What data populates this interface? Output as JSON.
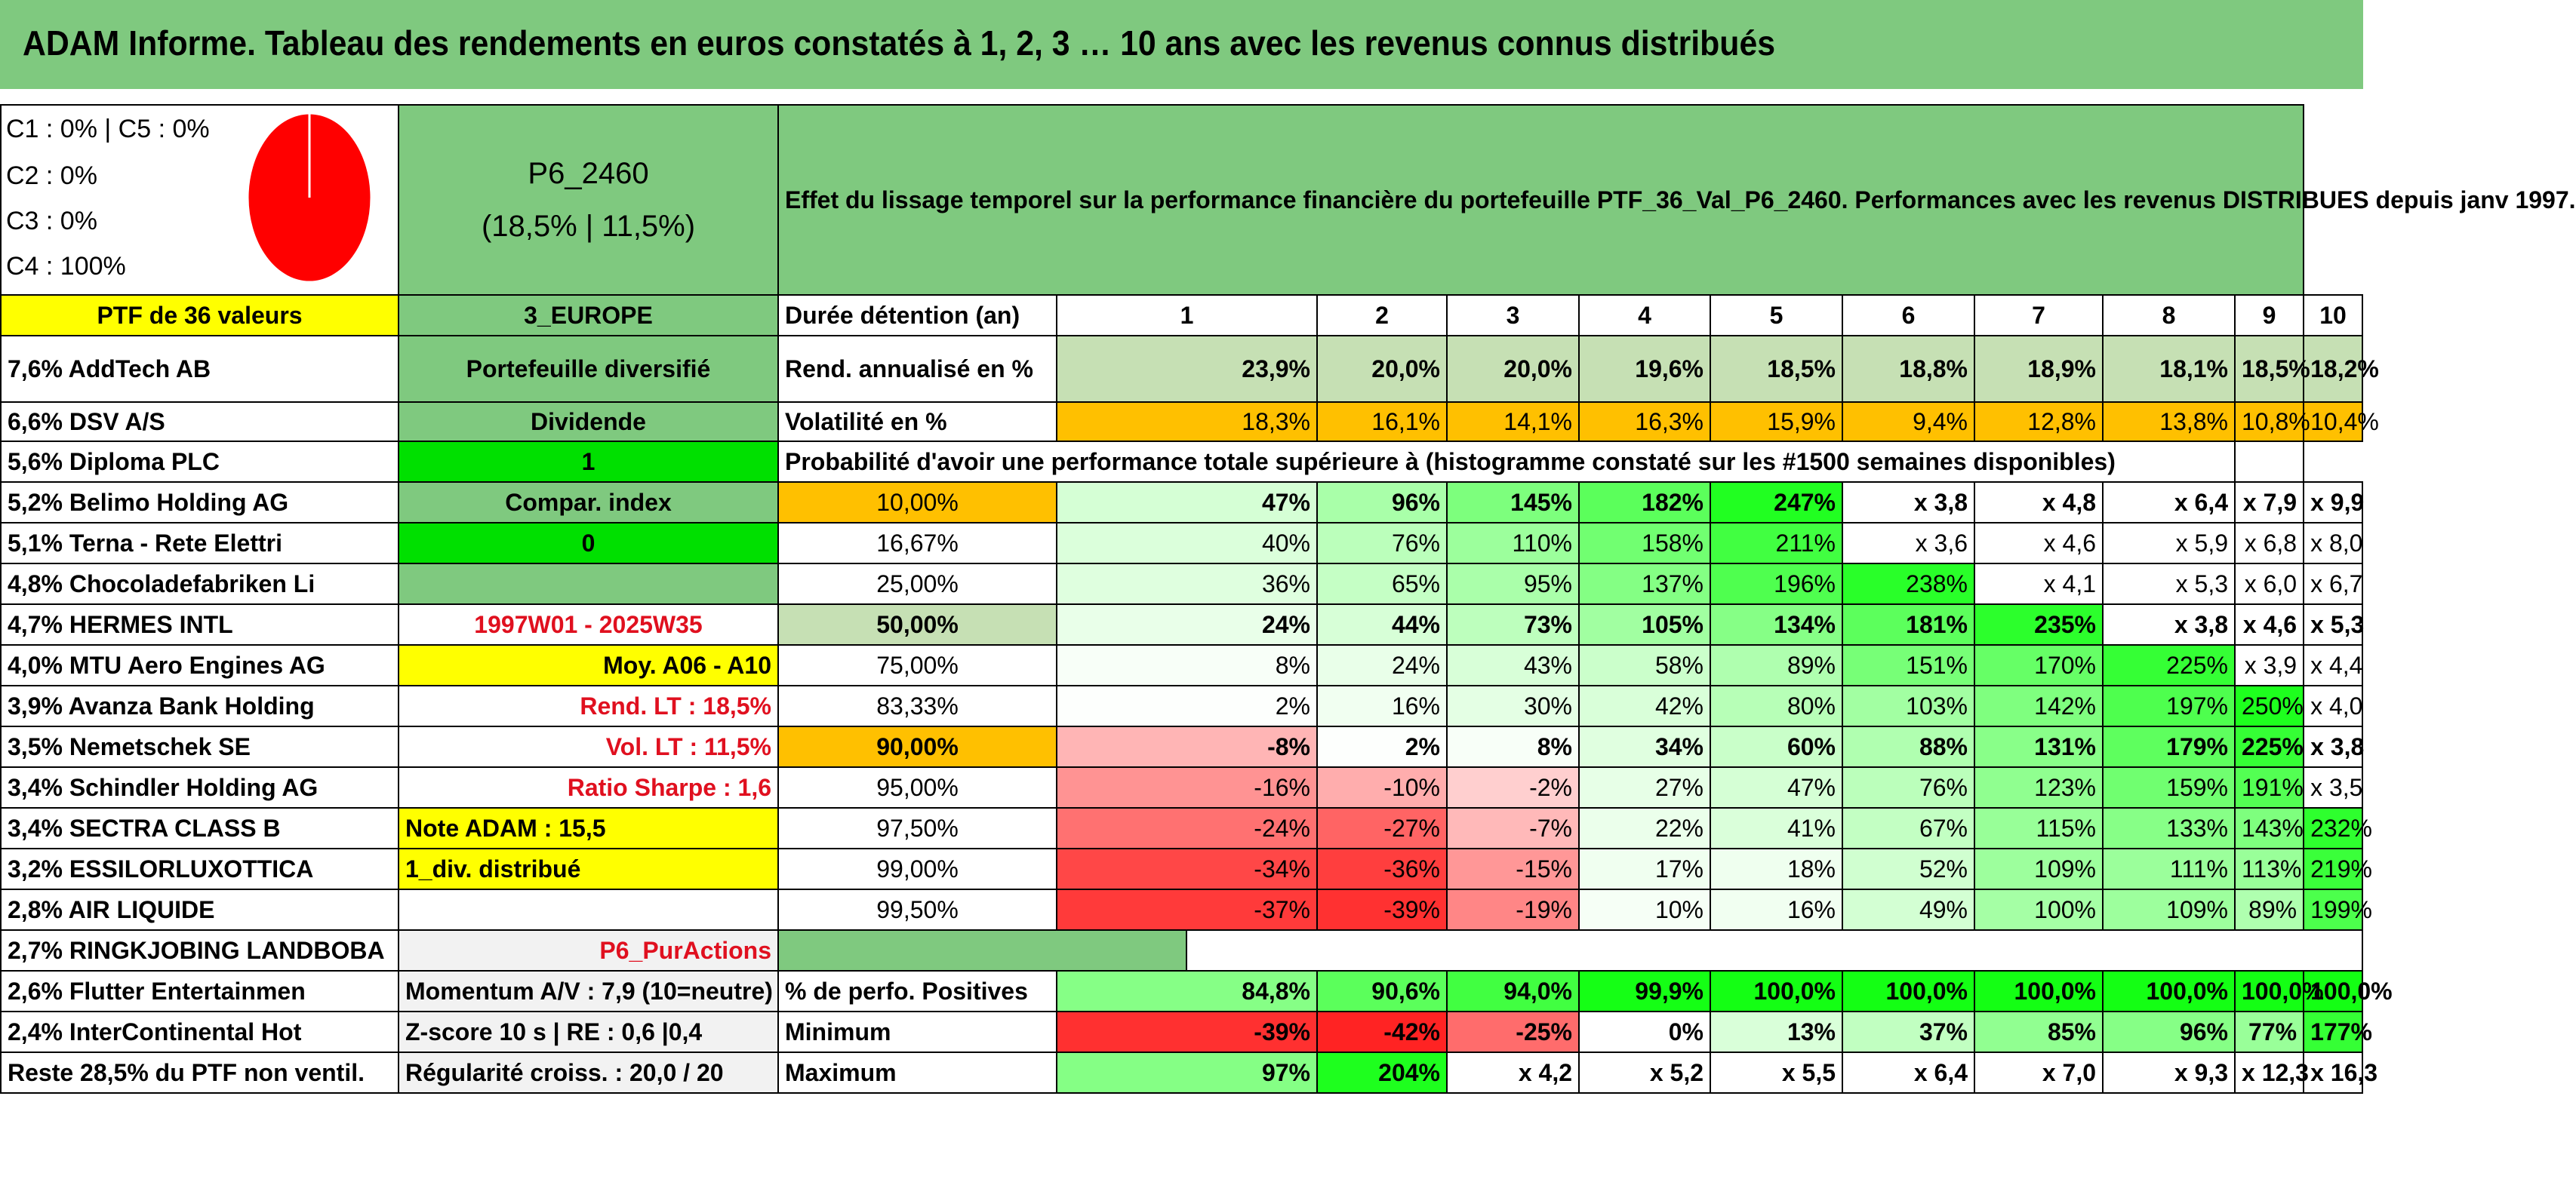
{
  "banner": {
    "title": "ADAM Informe. Tableau des rendements en euros constatés à 1, 2, 3 … 10 ans avec les revenus connus distribués"
  },
  "legend": {
    "c1c5": "C1 : 0% | C5 : 0%",
    "c2": "C2 : 0%",
    "c3": "C3 : 0%",
    "c4": "C4 : 100%"
  },
  "pie": {
    "value_fraction": 1.0,
    "color": "#ff0000"
  },
  "portfolio": {
    "code": "P6_2460",
    "stats": "(18,5% | 11,5%)"
  },
  "effect_text": "Effet du lissage temporel sur la performance financière du portefeuille PTF_36_Val_P6_2460. Performances avec les revenus DISTRIBUES depuis janv 1997.",
  "colors": {
    "green_medium": "#7fc97f",
    "yellow": "#ffff00",
    "orange": "#ffc000",
    "red_text": "#e0101f"
  },
  "row_hold": {
    "ptf": "PTF de 36 valeurs",
    "zone": "3_EUROPE",
    "label": "Durée détention (an)",
    "years": [
      "1",
      "2",
      "3",
      "4",
      "5",
      "6",
      "7",
      "8",
      "9",
      "10"
    ]
  },
  "row_rend": {
    "holding": "7,6% AddTech AB",
    "mid": "Portefeuille diversifié",
    "label": "Rend. annualisé en %",
    "values": [
      "23,9%",
      "20,0%",
      "20,0%",
      "19,6%",
      "18,5%",
      "18,8%",
      "18,9%",
      "18,1%",
      "18,5%",
      "18,2%"
    ]
  },
  "row_vol": {
    "holding": "6,6% DSV A/S",
    "mid": "Dividende",
    "label": "Volatilité en %",
    "values": [
      "18,3%",
      "16,1%",
      "14,1%",
      "16,3%",
      "15,9%",
      "9,4%",
      "12,8%",
      "13,8%",
      "10,8%",
      "10,4%"
    ]
  },
  "row_prob": {
    "holding": "5,6% Diploma PLC",
    "mid": "1",
    "label": "Probabilité d'avoir une performance totale supérieure à (histogramme constaté sur les #1500 semaines disponibles)"
  },
  "prob_rows": [
    {
      "holding": "5,2% Belimo Holding AG",
      "mid": "Compar. index",
      "prob": "10,00%",
      "values": [
        "47%",
        "96%",
        "145%",
        "182%",
        "247%",
        "x 3,8",
        "x 4,8",
        "x 6,4",
        "x 7,9",
        "x 9,9"
      ]
    },
    {
      "holding": "5,1% Terna - Rete Elettri",
      "mid": "0",
      "prob": "16,67%",
      "values": [
        "40%",
        "76%",
        "110%",
        "158%",
        "211%",
        "x 3,6",
        "x 4,6",
        "x 5,9",
        "x 6,8",
        "x 8,0"
      ]
    },
    {
      "holding": "4,8% Chocoladefabriken Li",
      "mid": "",
      "prob": "25,00%",
      "values": [
        "36%",
        "65%",
        "95%",
        "137%",
        "196%",
        "238%",
        "x 4,1",
        "x 5,3",
        "x 6,0",
        "x 6,7"
      ]
    },
    {
      "holding": "4,7% HERMES INTL",
      "mid": "1997W01 - 2025W35",
      "prob": "50,00%",
      "values": [
        "24%",
        "44%",
        "73%",
        "105%",
        "134%",
        "181%",
        "235%",
        "x 3,8",
        "x 4,6",
        "x 5,3"
      ]
    },
    {
      "holding": "4,0% MTU Aero Engines AG",
      "mid": "Moy. A06 - A10",
      "prob": "75,00%",
      "values": [
        "8%",
        "24%",
        "43%",
        "58%",
        "89%",
        "151%",
        "170%",
        "225%",
        "x 3,9",
        "x 4,4"
      ]
    },
    {
      "holding": "3,9% Avanza Bank Holding",
      "mid": "Rend. LT : 18,5%",
      "prob": "83,33%",
      "values": [
        "2%",
        "16%",
        "30%",
        "42%",
        "80%",
        "103%",
        "142%",
        "197%",
        "250%",
        "x 4,0"
      ]
    },
    {
      "holding": "3,5% Nemetschek SE",
      "mid": "Vol. LT : 11,5%",
      "prob": "90,00%",
      "values": [
        "-8%",
        "2%",
        "8%",
        "34%",
        "60%",
        "88%",
        "131%",
        "179%",
        "225%",
        "x 3,8"
      ]
    },
    {
      "holding": "3,4% Schindler Holding AG",
      "mid": "Ratio Sharpe : 1,6",
      "prob": "95,00%",
      "values": [
        "-16%",
        "-10%",
        "-2%",
        "27%",
        "47%",
        "76%",
        "123%",
        "159%",
        "191%",
        "x 3,5"
      ]
    },
    {
      "holding": "3,4% SECTRA CLASS B",
      "mid": "Note ADAM : 15,5",
      "prob": "97,50%",
      "values": [
        "-24%",
        "-27%",
        "-7%",
        "22%",
        "41%",
        "67%",
        "115%",
        "133%",
        "143%",
        "232%"
      ]
    },
    {
      "holding": "3,2% ESSILORLUXOTTICA",
      "mid": "1_div. distribué",
      "prob": "99,00%",
      "values": [
        "-34%",
        "-36%",
        "-15%",
        "17%",
        "18%",
        "52%",
        "109%",
        "111%",
        "113%",
        "219%"
      ]
    },
    {
      "holding": "2,8% AIR LIQUIDE",
      "mid": "",
      "prob": "99,50%",
      "values": [
        "-37%",
        "-39%",
        "-19%",
        "10%",
        "16%",
        "49%",
        "100%",
        "109%",
        "89%",
        "199%"
      ]
    }
  ],
  "row_ring": {
    "holding": "2,7% RINGKJOBING LANDBOBA",
    "mid": "P6_PurActions"
  },
  "stat_rows": [
    {
      "holding": "2,6% Flutter Entertainmen",
      "mid": "Momentum A/V : 7,9 (10=neutre)",
      "label": "% de perfo. Positives",
      "values": [
        "84,8%",
        "90,6%",
        "94,0%",
        "99,9%",
        "100,0%",
        "100,0%",
        "100,0%",
        "100,0%",
        "100,0%",
        "100,0%"
      ]
    },
    {
      "holding": "2,4% InterContinental Hot",
      "mid": "Z-score 10 s | RE : 0,6 |0,4",
      "label": "Minimum",
      "values": [
        "-39%",
        "-42%",
        "-25%",
        "0%",
        "13%",
        "37%",
        "85%",
        "96%",
        "77%",
        "177%"
      ]
    },
    {
      "holding": "Reste 28,5% du PTF non ventil.",
      "mid": "Régularité croiss. : 20,0 / 20",
      "label": "Maximum",
      "values": [
        "97%",
        "204%",
        "x 4,2",
        "x 5,2",
        "x 5,5",
        "x 6,4",
        "x 7,0",
        "x 9,3",
        "x 12,3",
        "x 16,3"
      ]
    }
  ]
}
